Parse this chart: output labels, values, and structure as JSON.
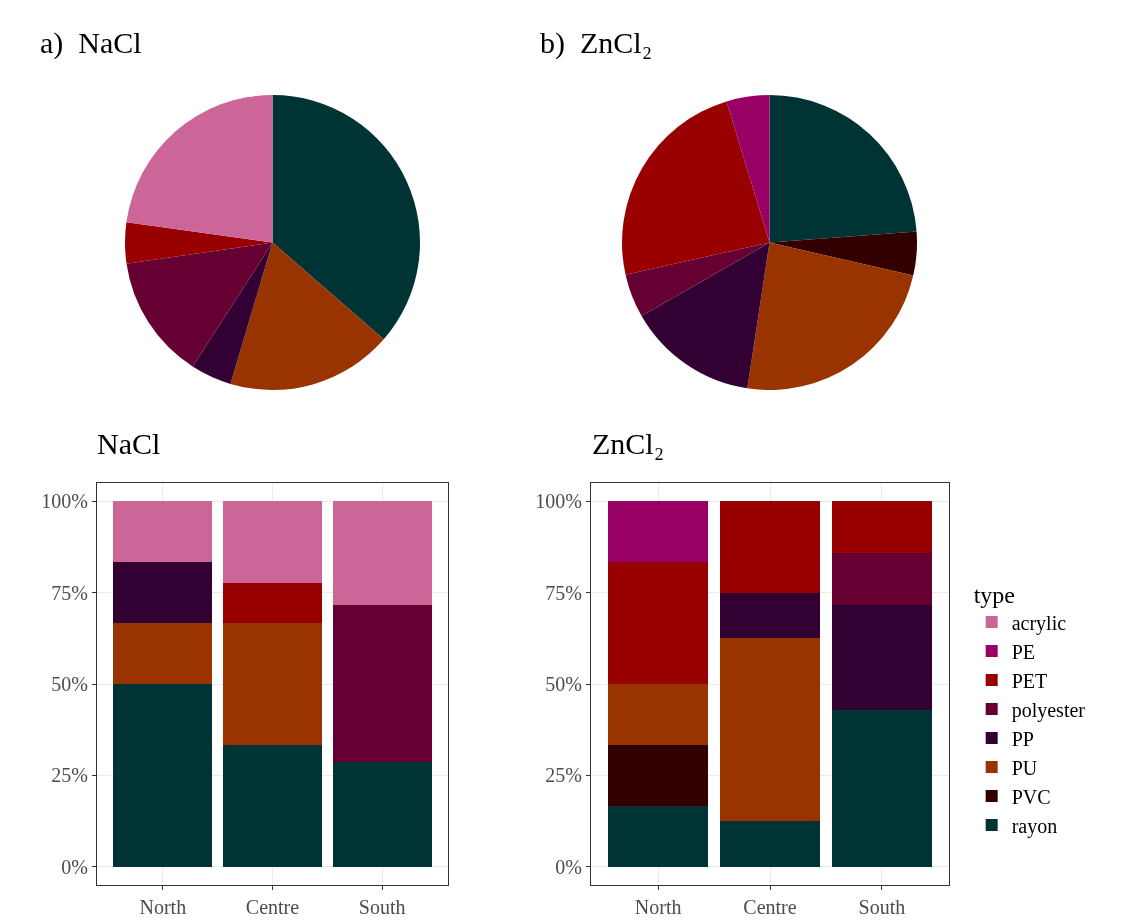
{
  "chart_data": [
    {
      "type": "pie",
      "title": "a)  NaCl",
      "categories": [
        null,
        null,
        null,
        null,
        null,
        null
      ],
      "values": [
        36.4,
        18.2,
        4.5,
        13.6,
        4.5,
        22.8
      ],
      "colors": [
        "#003333",
        "#993300",
        "#330033",
        "#660033",
        "#990000",
        "#cc6699"
      ]
    },
    {
      "type": "pie",
      "title": "b)  ZnCl₂",
      "categories": [
        null,
        null,
        null,
        null,
        null,
        null,
        null
      ],
      "values": [
        23.8,
        4.8,
        23.8,
        14.3,
        4.8,
        23.8,
        4.7
      ],
      "colors": [
        "#003333",
        "#330000",
        "#993300",
        "#330033",
        "#660033",
        "#990000",
        "#990066"
      ]
    },
    {
      "type": "bar",
      "stacked": true,
      "title": "NaCl",
      "categories": [
        "North",
        "Centre",
        "South"
      ],
      "ylim": [
        -5,
        105
      ],
      "yticks": [
        {
          "value": 0,
          "label": "0%"
        },
        {
          "value": 25,
          "label": "25%"
        },
        {
          "value": 50,
          "label": "50%"
        },
        {
          "value": 75,
          "label": "75%"
        },
        {
          "value": 100,
          "label": "100%"
        }
      ],
      "grid": true,
      "series": [
        {
          "color": "#003333",
          "values": [
            50,
            33.3,
            28.6
          ]
        },
        {
          "color": "#993300",
          "values": [
            16.7,
            33.3,
            null
          ]
        },
        {
          "color": "#330033",
          "values": [
            16.7,
            null,
            null
          ]
        },
        {
          "color": "#660033",
          "values": [
            null,
            null,
            42.9
          ]
        },
        {
          "color": "#990000",
          "values": [
            null,
            11.1,
            null
          ]
        },
        {
          "color": "#cc6699",
          "values": [
            16.6,
            22.3,
            28.5
          ]
        }
      ]
    },
    {
      "type": "bar",
      "stacked": true,
      "title": "ZnCl₂",
      "categories": [
        "North",
        "Centre",
        "South"
      ],
      "ylim": [
        -5,
        105
      ],
      "yticks": [
        {
          "value": 0,
          "label": "0%"
        },
        {
          "value": 25,
          "label": "25%"
        },
        {
          "value": 50,
          "label": "50%"
        },
        {
          "value": 75,
          "label": "75%"
        },
        {
          "value": 100,
          "label": "100%"
        }
      ],
      "grid": true,
      "legend": "right",
      "legend_title": "type",
      "series": [
        {
          "name": "rayon",
          "color": "#003333",
          "values": [
            16.7,
            12.5,
            42.9
          ]
        },
        {
          "name": "PVC",
          "color": "#330000",
          "values": [
            16.7,
            null,
            null
          ]
        },
        {
          "name": "PU",
          "color": "#993300",
          "values": [
            16.7,
            50,
            null
          ]
        },
        {
          "name": "PP",
          "color": "#330033",
          "values": [
            null,
            12.5,
            28.6
          ]
        },
        {
          "name": "polyester",
          "color": "#660033",
          "values": [
            null,
            null,
            14.3
          ]
        },
        {
          "name": "PET",
          "color": "#990000",
          "values": [
            33.3,
            25,
            14.2
          ]
        },
        {
          "name": "PE",
          "color": "#990066",
          "values": [
            16.6,
            null,
            null
          ]
        },
        {
          "name": "acrylic",
          "color": "#cc6699",
          "values": [
            null,
            null,
            null
          ]
        }
      ]
    }
  ]
}
